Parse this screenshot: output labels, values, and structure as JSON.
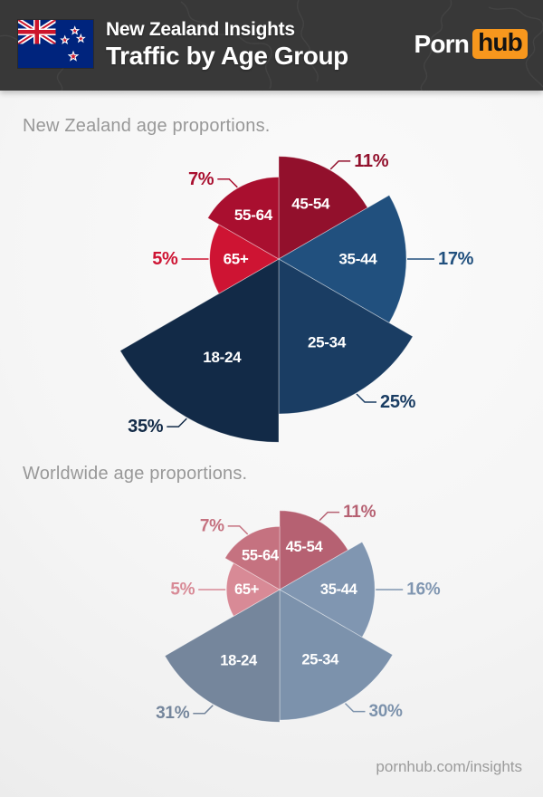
{
  "header": {
    "title_line1": "New Zealand Insights",
    "title_line2": "Traffic by Age Group",
    "logo": {
      "part1": "Porn",
      "part2": "hub",
      "accent_color": "#f7971d"
    },
    "flag_icon": "new-zealand-flag"
  },
  "chart_data": [
    {
      "id": "new-zealand",
      "type": "polar-area",
      "title": "New Zealand age proportions.",
      "unit": "%",
      "categories": [
        "45-54",
        "35-44",
        "25-34",
        "18-24",
        "65+",
        "55-64"
      ],
      "values": [
        11,
        17,
        25,
        35,
        5,
        7
      ],
      "colors": [
        "#92102C",
        "#21507E",
        "#1A3D63",
        "#122A47",
        "#CE1433",
        "#A90F2F"
      ],
      "start_angle_deg": 0,
      "slice_angle_deg": 60,
      "legend_position": "callout-labels",
      "grid": false
    },
    {
      "id": "worldwide",
      "type": "polar-area",
      "title": "Worldwide age proportions.",
      "unit": "%",
      "categories": [
        "45-54",
        "35-44",
        "25-34",
        "18-24",
        "65+",
        "55-64"
      ],
      "values": [
        11,
        16,
        30,
        31,
        5,
        7
      ],
      "colors": [
        "#B66172",
        "#8096B1",
        "#7C92AC",
        "#75869C",
        "#D88A96",
        "#C57280"
      ],
      "start_angle_deg": 0,
      "slice_angle_deg": 60,
      "legend_position": "callout-labels",
      "grid": false
    }
  ],
  "footer": {
    "text": "pornhub.com/insights"
  }
}
